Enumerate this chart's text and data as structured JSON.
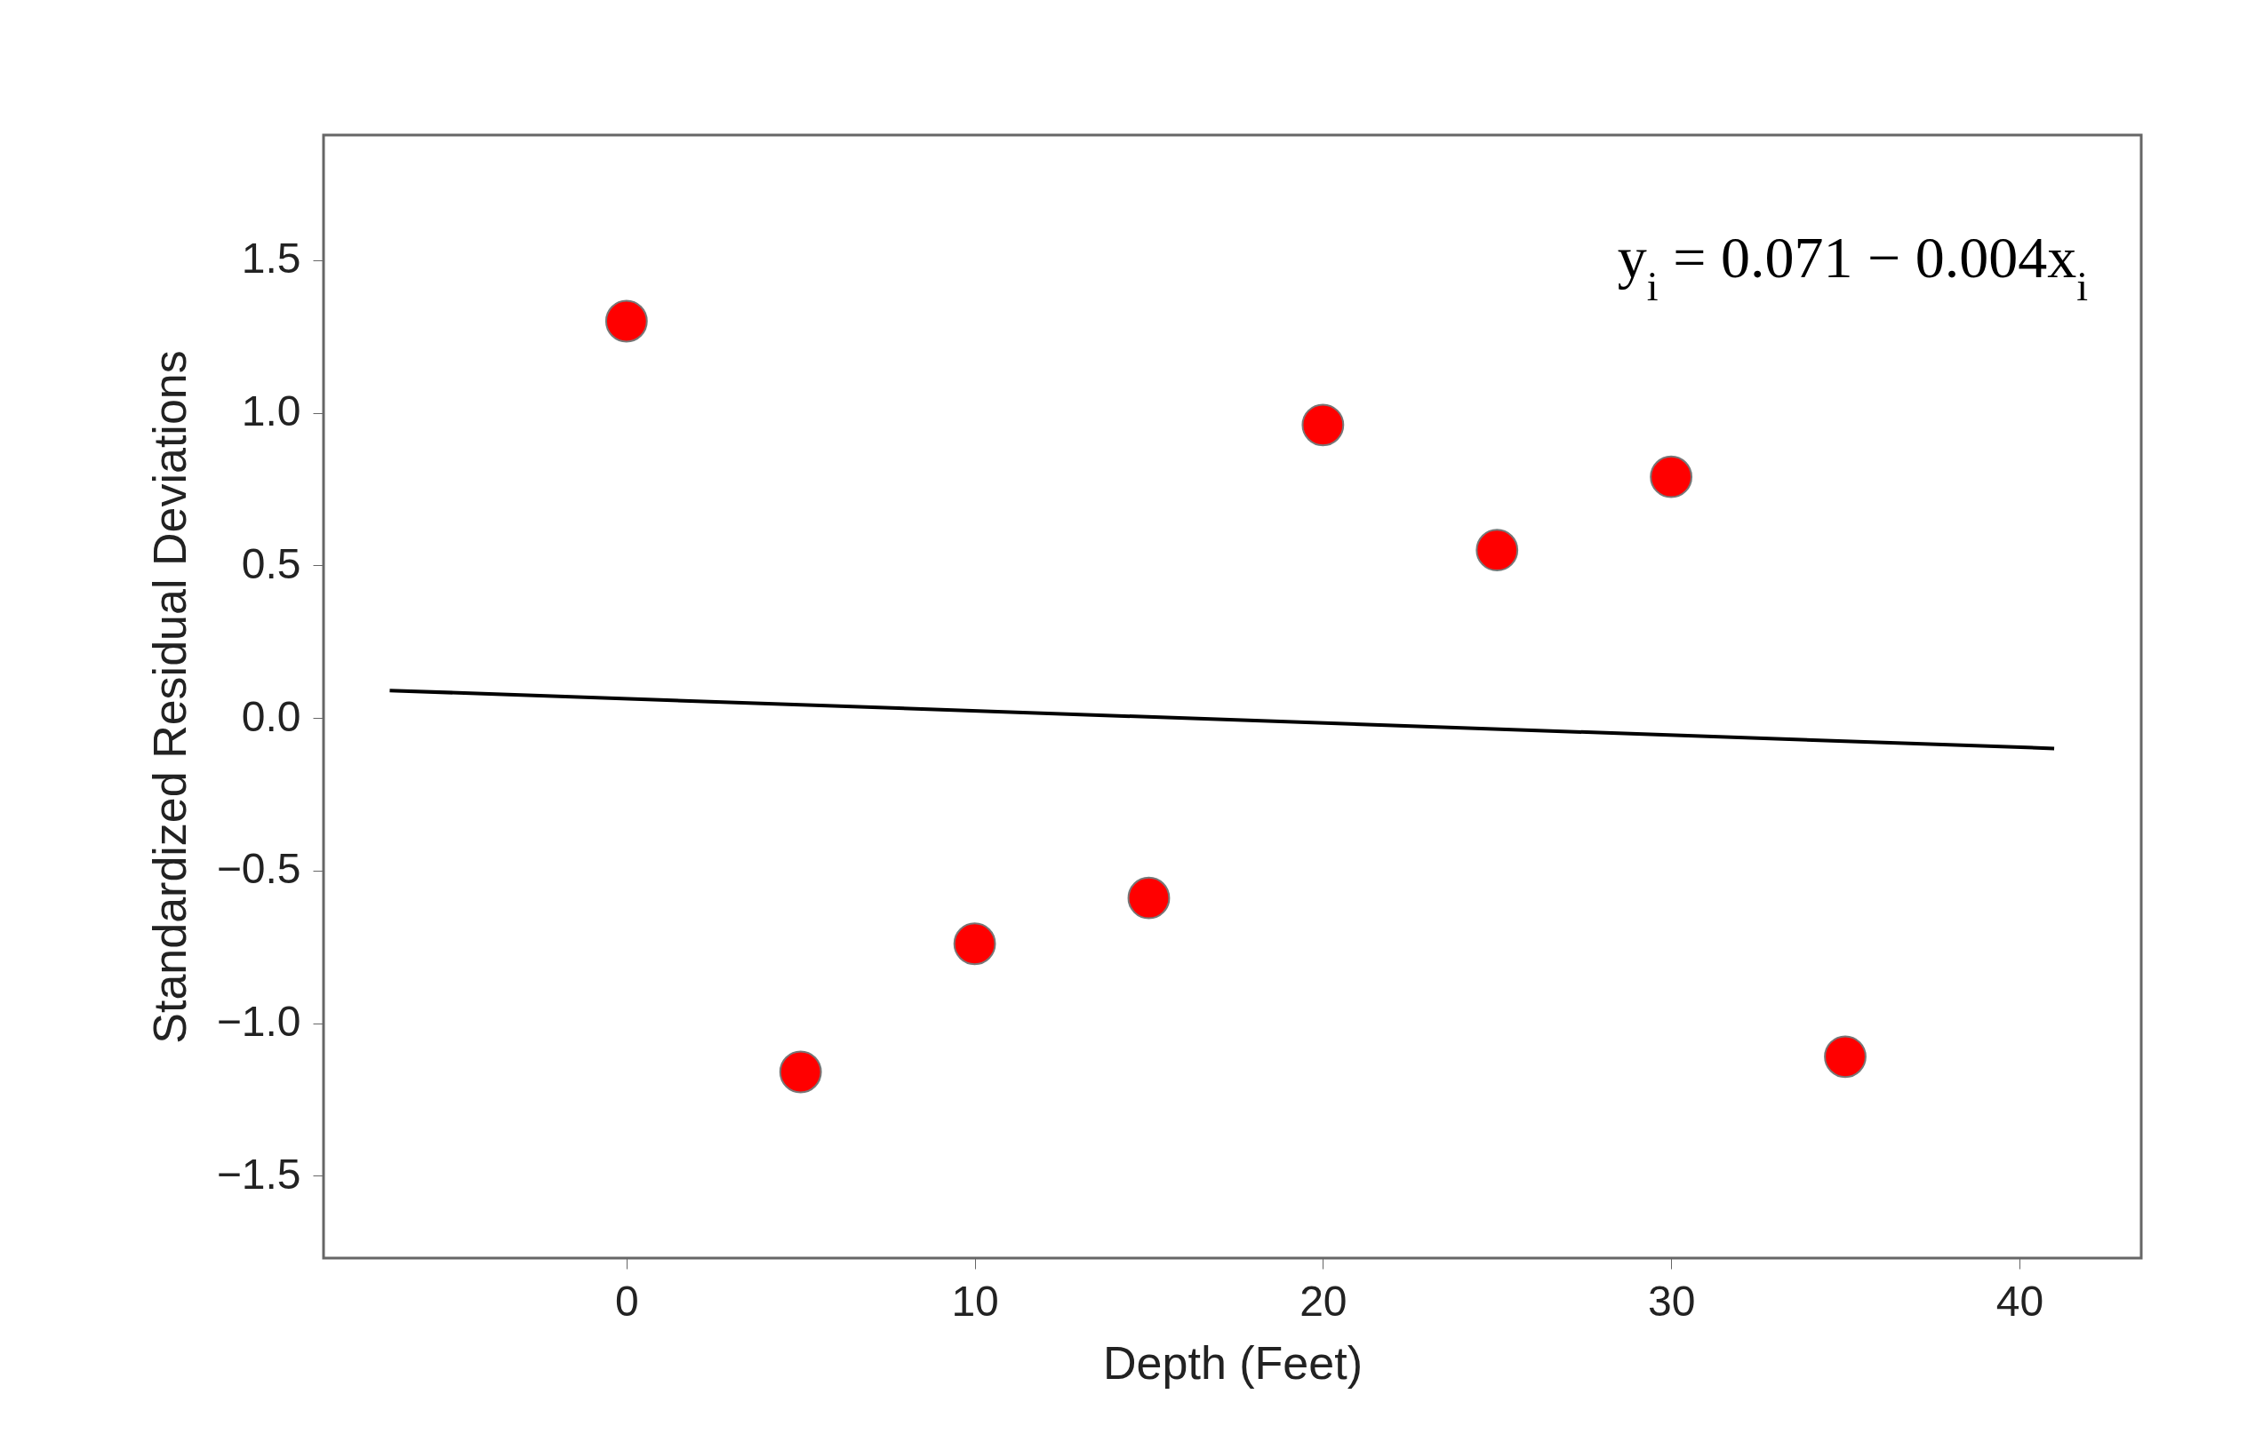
{
  "chart_data": {
    "type": "scatter",
    "xlabel": "Depth (Feet)",
    "ylabel": "Standardized Residual Deviations",
    "x": [
      0,
      5,
      10,
      15,
      20,
      25,
      30,
      35
    ],
    "series": [
      {
        "marker": "circle",
        "color": "#ff0000",
        "values": [
          1.3,
          -1.16,
          -0.74,
          -0.59,
          0.96,
          0.55,
          0.79,
          -1.11
        ]
      },
      {
        "type": "line",
        "color": "#000000",
        "x": [
          -6.8,
          41
        ],
        "values": [
          0.09,
          -0.1
        ]
      }
    ],
    "xlim": [
      -8.7,
      43.5
    ],
    "ylim": [
      -1.77,
      1.91
    ],
    "xticks": [
      0,
      10,
      20,
      30,
      40
    ],
    "yticks": [
      {
        "value": -1.5,
        "label": "−1.5"
      },
      {
        "value": -1,
        "label": "−1.0"
      },
      {
        "value": -0.5,
        "label": "−0.5"
      },
      {
        "value": 0,
        "label": "0.0"
      },
      {
        "value": 0.5,
        "label": "0.5"
      },
      {
        "value": 1,
        "label": "1.0"
      },
      {
        "value": 1.5,
        "label": "1.5"
      }
    ],
    "grid": false,
    "line_style": "solid",
    "annotations": [
      "y$_{i}$ = 0.071 − 0.004x$_{i}$"
    ]
  }
}
